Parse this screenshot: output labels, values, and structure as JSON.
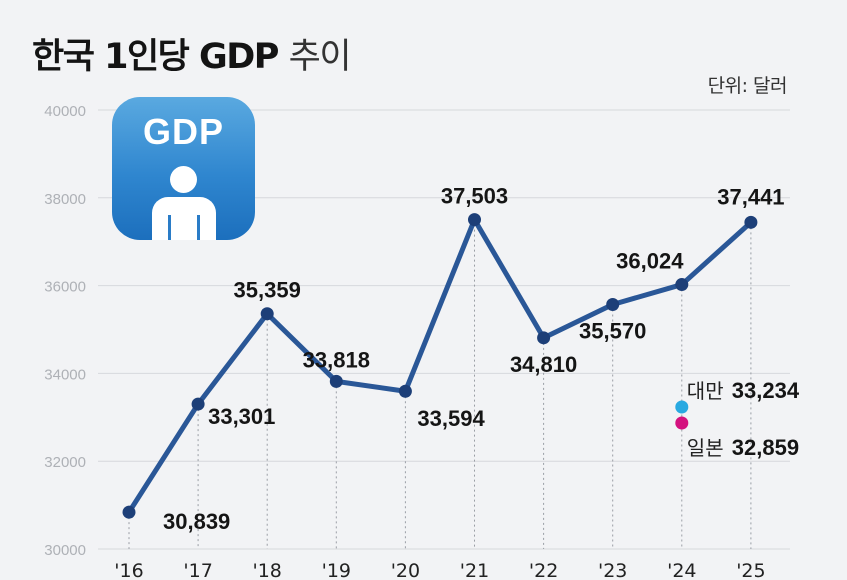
{
  "header": {
    "title_bold": "한국 1인당 GDP",
    "title_light": "추이",
    "unit": "단위: 달러"
  },
  "badge": {
    "text": "GDP",
    "icon": "person-icon"
  },
  "chart_data": {
    "type": "line",
    "categories": [
      "'16",
      "'17",
      "'18",
      "'19",
      "'20",
      "'21",
      "'22",
      "'23",
      "'24",
      "'25"
    ],
    "series": [
      {
        "name": "한국",
        "values": [
          30839,
          33301,
          35359,
          33818,
          33594,
          37503,
          34810,
          35570,
          36024,
          37441
        ],
        "labels": [
          "30,839",
          "33,301",
          "35,359",
          "33,818",
          "33,594",
          "37,503",
          "34,810",
          "35,570",
          "36,024",
          "37,441"
        ],
        "color": "#2a5797"
      }
    ],
    "comparison": [
      {
        "name": "대만",
        "category": "'24",
        "value": 33234,
        "label": "33,234",
        "color": "#29a9e1"
      },
      {
        "name": "일본",
        "category": "'24",
        "value": 32859,
        "label": "32,859",
        "color": "#d4127f"
      }
    ],
    "yticks": [
      "30000",
      "32000",
      "34000",
      "36000",
      "38000",
      "40000"
    ],
    "ylim": [
      30000,
      40000
    ],
    "grid": true
  }
}
